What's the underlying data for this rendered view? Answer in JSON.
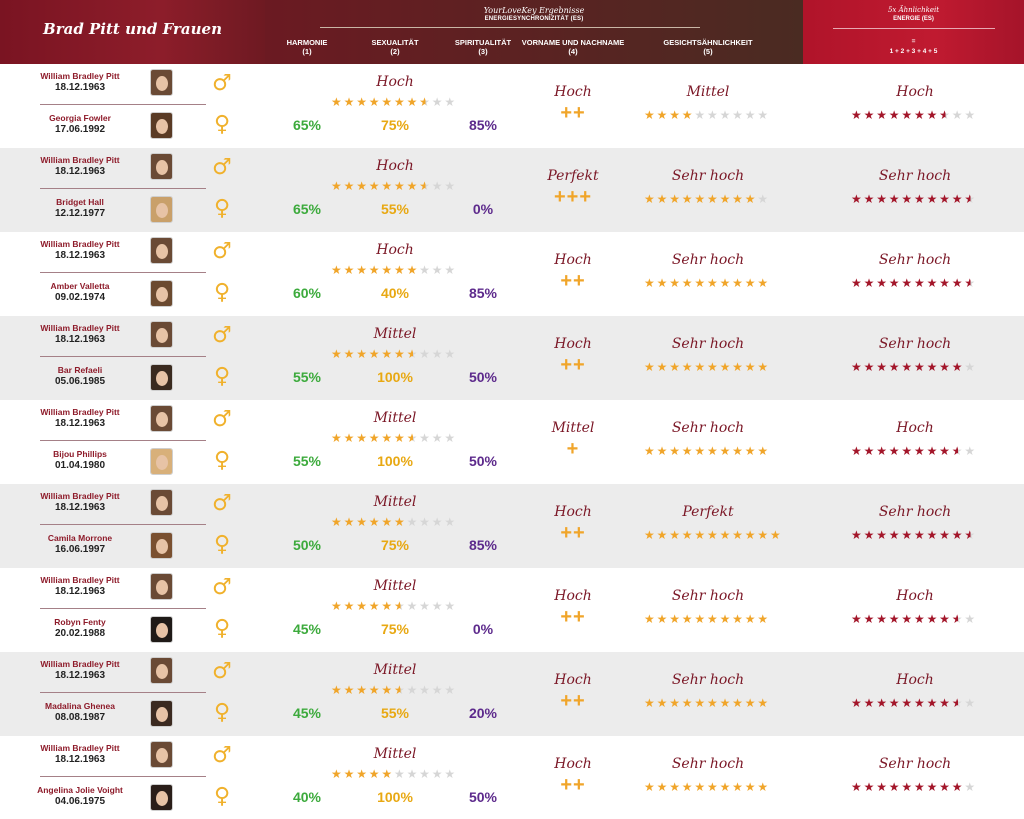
{
  "header": {
    "title": "Brad Pitt und Frauen",
    "brand": "YourLoveKey Ergebnisse",
    "energy_sync": "ENERGIESYNCHRONIZITÄT (ES)",
    "col_harmony": "HARMONIE",
    "col_harmony_n": "(1)",
    "col_sexuality": "SEXUALITÄT",
    "col_sexuality_n": "(2)",
    "col_spirituality": "SPIRITUALITÄT",
    "col_spirituality_n": "(3)",
    "col_name": "VORNAME UND NACHNAME",
    "col_name_n": "(4)",
    "col_face": "GESICHTSÄHNLICHKEIT",
    "col_face_n": "(5)",
    "right_title": "5x Ähnlichkeit",
    "right_sub": "ENERGIE (ES)",
    "right_eq": "=",
    "right_formula": "1 + 2 + 3 + 4 + 5"
  },
  "colors": {
    "harmony": "#3caa3c",
    "sexuality": "#e8a812",
    "spirituality": "#5d2a8c",
    "star_gold": "#f0a52a",
    "star_red": "#a3162a",
    "brand_red": "#8e1b2a"
  },
  "icons": {
    "male": "male-symbol-icon",
    "female": "female-symbol-icon",
    "star": "star-icon"
  },
  "rows": [
    {
      "man": {
        "name": "William Bradley Pitt",
        "date": "18.12.1963"
      },
      "woman": {
        "name": "Georgia Fowler",
        "date": "17.06.1992"
      },
      "harmony": "65%",
      "sexuality": "75%",
      "spirituality": "85%",
      "sync_label": "Hoch",
      "sync_stars": 7.5,
      "name_label": "Hoch",
      "name_plus": "++",
      "face_label": "Mittel",
      "face_stars": 4,
      "energy_label": "Hoch",
      "energy_stars": 7.5
    },
    {
      "man": {
        "name": "William Bradley Pitt",
        "date": "18.12.1963"
      },
      "woman": {
        "name": "Bridget Hall",
        "date": "12.12.1977"
      },
      "harmony": "65%",
      "sexuality": "55%",
      "spirituality": "0%",
      "sync_label": "Hoch",
      "sync_stars": 7.5,
      "name_label": "Perfekt",
      "name_plus": "+++",
      "face_label": "Sehr hoch",
      "face_stars": 9,
      "energy_label": "Sehr hoch",
      "energy_stars": 9.5
    },
    {
      "man": {
        "name": "William Bradley Pitt",
        "date": "18.12.1963"
      },
      "woman": {
        "name": "Amber Valletta",
        "date": "09.02.1974"
      },
      "harmony": "60%",
      "sexuality": "40%",
      "spirituality": "85%",
      "sync_label": "Hoch",
      "sync_stars": 7,
      "name_label": "Hoch",
      "name_plus": "++",
      "face_label": "Sehr hoch",
      "face_stars": 10,
      "energy_label": "Sehr hoch",
      "energy_stars": 9.5
    },
    {
      "man": {
        "name": "William Bradley Pitt",
        "date": "18.12.1963"
      },
      "woman": {
        "name": "Bar Refaeli",
        "date": "05.06.1985"
      },
      "harmony": "55%",
      "sexuality": "100%",
      "spirituality": "50%",
      "sync_label": "Mittel",
      "sync_stars": 6.5,
      "name_label": "Hoch",
      "name_plus": "++",
      "face_label": "Sehr hoch",
      "face_stars": 10,
      "energy_label": "Sehr hoch",
      "energy_stars": 9
    },
    {
      "man": {
        "name": "William Bradley Pitt",
        "date": "18.12.1963"
      },
      "woman": {
        "name": "Bijou Phillips",
        "date": "01.04.1980"
      },
      "harmony": "55%",
      "sexuality": "100%",
      "spirituality": "50%",
      "sync_label": "Mittel",
      "sync_stars": 6.5,
      "name_label": "Mittel",
      "name_plus": "+",
      "face_label": "Sehr hoch",
      "face_stars": 10,
      "energy_label": "Hoch",
      "energy_stars": 8.5
    },
    {
      "man": {
        "name": "William Bradley Pitt",
        "date": "18.12.1963"
      },
      "woman": {
        "name": "Camila Morrone",
        "date": "16.06.1997"
      },
      "harmony": "50%",
      "sexuality": "75%",
      "spirituality": "85%",
      "sync_label": "Mittel",
      "sync_stars": 6,
      "name_label": "Hoch",
      "name_plus": "++",
      "face_label": "Perfekt",
      "face_stars": 11,
      "energy_label": "Sehr hoch",
      "energy_stars": 9.5
    },
    {
      "man": {
        "name": "William Bradley Pitt",
        "date": "18.12.1963"
      },
      "woman": {
        "name": "Robyn Fenty",
        "date": "20.02.1988"
      },
      "harmony": "45%",
      "sexuality": "75%",
      "spirituality": "0%",
      "sync_label": "Mittel",
      "sync_stars": 5.5,
      "name_label": "Hoch",
      "name_plus": "++",
      "face_label": "Sehr hoch",
      "face_stars": 10,
      "energy_label": "Hoch",
      "energy_stars": 8.5
    },
    {
      "man": {
        "name": "William Bradley Pitt",
        "date": "18.12.1963"
      },
      "woman": {
        "name": "Madalina Ghenea",
        "date": "08.08.1987"
      },
      "harmony": "45%",
      "sexuality": "55%",
      "spirituality": "20%",
      "sync_label": "Mittel",
      "sync_stars": 5.5,
      "name_label": "Hoch",
      "name_plus": "++",
      "face_label": "Sehr hoch",
      "face_stars": 10,
      "energy_label": "Hoch",
      "energy_stars": 8.5
    },
    {
      "man": {
        "name": "William Bradley Pitt",
        "date": "18.12.1963"
      },
      "woman": {
        "name": "Angelina Jolie Voight",
        "date": "04.06.1975"
      },
      "harmony": "40%",
      "sexuality": "100%",
      "spirituality": "50%",
      "sync_label": "Mittel",
      "sync_stars": 5,
      "name_label": "Hoch",
      "name_plus": "++",
      "face_label": "Sehr hoch",
      "face_stars": 10,
      "energy_label": "Sehr hoch",
      "energy_stars": 9
    }
  ]
}
